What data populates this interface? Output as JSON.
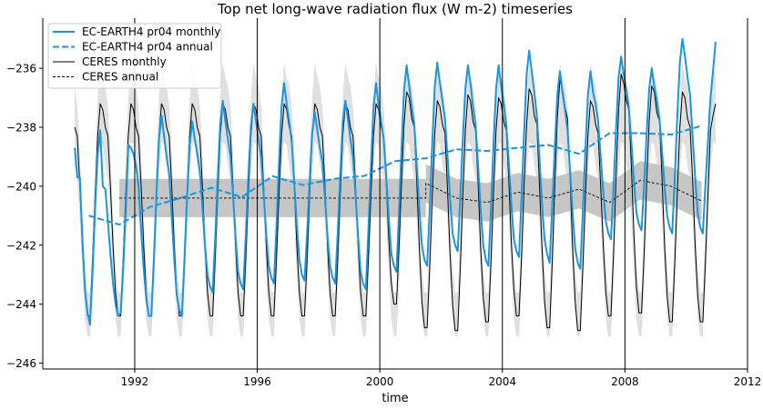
{
  "chart_data": {
    "type": "line",
    "title": "Top net long-wave radiation flux (W m-2) timeseries",
    "xlabel": "time",
    "ylabel": "",
    "xlim": [
      1989.0,
      2012.0
    ],
    "ylim": [
      -246.2,
      -234.3
    ],
    "x_ticks": [
      1992,
      1996,
      2000,
      2004,
      2008,
      2012
    ],
    "x_tick_labels": [
      "1992",
      "1996",
      "2000",
      "2004",
      "2008",
      "2012"
    ],
    "y_ticks": [
      -236,
      -238,
      -240,
      -242,
      -244,
      -246
    ],
    "y_tick_labels": [
      "−236",
      "−238",
      "−240",
      "−242",
      "−244",
      "−246"
    ],
    "vertical_gridlines": true,
    "legend_position": "upper-left",
    "colors": {
      "model": "#1a96e0",
      "obs": "#000000",
      "obs_monthly_range": "#e0e0e0",
      "obs_annual_range": "#c6c6c6"
    },
    "monthly_years": [
      1990,
      1991,
      1992,
      1993,
      1994,
      1995,
      1996,
      1997,
      1998,
      1999,
      2000,
      2001,
      2002,
      2003,
      2004,
      2005,
      2006,
      2007,
      2008,
      2009,
      2010
    ],
    "series": [
      {
        "name": "EC-EARTH4 pr04 monthly",
        "style": "solid",
        "color": "#1a96e0",
        "monthly_values": [
          [
            -238.7,
            -239.7,
            -239.7,
            -241.8,
            -243.5,
            -244.3,
            -244.7,
            -242.9,
            -240.7,
            -238.9,
            -238.1,
            -240.0
          ],
          [
            -240.1,
            -241.2,
            -242.3,
            -243.3,
            -244.0,
            -244.4,
            -244.3,
            -242.8,
            -240.9,
            -238.6,
            -238.7,
            -238.9
          ],
          [
            -239.3,
            -240.0,
            -241.5,
            -242.8,
            -243.8,
            -244.4,
            -244.4,
            -242.5,
            -240.3,
            -238.4,
            -237.6,
            -238.3
          ],
          [
            -239.0,
            -239.6,
            -241.0,
            -242.5,
            -243.7,
            -244.2,
            -244.4,
            -242.5,
            -240.4,
            -238.6,
            -237.8,
            -238.4
          ],
          [
            -238.9,
            -239.5,
            -240.7,
            -242.0,
            -243.0,
            -243.4,
            -243.6,
            -241.8,
            -239.7,
            -237.9,
            -237.1,
            -237.8
          ],
          [
            -238.4,
            -239.0,
            -240.3,
            -241.7,
            -242.9,
            -243.3,
            -243.5,
            -241.7,
            -239.7,
            -238.0,
            -237.2,
            -237.8
          ],
          [
            -238.4,
            -239.0,
            -240.3,
            -241.6,
            -242.7,
            -243.1,
            -243.3,
            -241.4,
            -239.2,
            -237.3,
            -236.5,
            -237.2
          ],
          [
            -237.8,
            -238.5,
            -239.9,
            -241.3,
            -242.5,
            -243.0,
            -243.2,
            -241.6,
            -239.8,
            -238.2,
            -237.5,
            -238.1
          ],
          [
            -238.7,
            -239.2,
            -240.4,
            -241.7,
            -242.7,
            -243.1,
            -243.3,
            -241.6,
            -239.6,
            -237.8,
            -237.1,
            -237.7
          ],
          [
            -238.4,
            -239.0,
            -240.3,
            -241.7,
            -242.9,
            -243.3,
            -243.5,
            -241.5,
            -239.3,
            -237.3,
            -236.5,
            -237.2
          ],
          [
            -237.8,
            -238.4,
            -239.7,
            -241.1,
            -242.3,
            -242.7,
            -242.9,
            -240.9,
            -238.7,
            -236.7,
            -235.9,
            -236.6
          ],
          [
            -237.3,
            -237.9,
            -239.3,
            -240.8,
            -242.0,
            -242.5,
            -242.7,
            -240.8,
            -238.6,
            -236.6,
            -235.8,
            -236.5
          ],
          [
            -237.1,
            -237.7,
            -239.0,
            -240.4,
            -241.6,
            -242.0,
            -242.2,
            -240.4,
            -238.4,
            -236.7,
            -235.9,
            -236.5
          ],
          [
            -237.3,
            -237.9,
            -239.3,
            -240.8,
            -242.0,
            -242.5,
            -242.7,
            -240.8,
            -238.6,
            -236.7,
            -235.9,
            -236.6
          ],
          [
            -237.2,
            -237.9,
            -239.2,
            -240.6,
            -241.8,
            -242.2,
            -242.4,
            -240.4,
            -238.2,
            -236.2,
            -235.4,
            -236.1
          ],
          [
            -236.8,
            -237.6,
            -239.0,
            -240.6,
            -241.8,
            -242.3,
            -242.6,
            -240.7,
            -238.7,
            -236.9,
            -236.1,
            -236.8
          ],
          [
            -237.4,
            -238.1,
            -239.5,
            -240.9,
            -242.1,
            -242.6,
            -242.8,
            -240.9,
            -238.8,
            -236.9,
            -236.1,
            -236.8
          ],
          [
            -237.2,
            -237.8,
            -239.0,
            -240.2,
            -241.2,
            -241.6,
            -241.8,
            -240.1,
            -238.1,
            -236.3,
            -235.6,
            -236.2
          ],
          [
            -236.7,
            -237.3,
            -238.5,
            -239.8,
            -240.9,
            -241.3,
            -241.5,
            -240.0,
            -238.2,
            -236.7,
            -236.0,
            -236.6
          ],
          [
            -237.1,
            -237.7,
            -238.8,
            -240.0,
            -241.0,
            -241.4,
            -241.6,
            -239.7,
            -237.6,
            -235.8,
            -235.0,
            -235.6
          ],
          [
            -236.3,
            -236.9,
            -238.3,
            -239.7,
            -240.9,
            -241.4,
            -241.6,
            -240.0,
            -238.5,
            -237.0,
            -236.1,
            -235.1
          ]
        ]
      },
      {
        "name": "EC-EARTH4 pr04 annual",
        "style": "dashed",
        "color": "#1a96e0",
        "x": [
          1990.5,
          1991.5,
          1992.5,
          1993.5,
          1994.5,
          1995.5,
          1996.5,
          1997.5,
          1998.5,
          1999.5,
          2000.5,
          2001.5,
          2002.5,
          2003.5,
          2004.5,
          2005.5,
          2006.5,
          2007.5,
          2008.5,
          2009.5,
          2010.5
        ],
        "y": [
          -241.0,
          -241.3,
          -240.7,
          -240.4,
          -240.05,
          -240.37,
          -239.66,
          -239.96,
          -239.75,
          -239.65,
          -239.15,
          -239.05,
          -238.75,
          -238.8,
          -238.7,
          -238.6,
          -238.9,
          -238.2,
          -238.2,
          -238.25,
          -237.95
        ]
      },
      {
        "name": "CERES monthly",
        "style": "solid",
        "color": "#000000",
        "monthly_values": [
          [
            -238.0,
            -238.3,
            -240.0,
            -242.0,
            -243.6,
            -244.4,
            -244.4,
            -242.5,
            -240.3,
            -238.3,
            -237.2,
            -237.4
          ],
          [
            -238.0,
            -238.3,
            -240.0,
            -242.0,
            -243.6,
            -244.4,
            -244.4,
            -242.5,
            -240.3,
            -238.3,
            -237.2,
            -237.4
          ],
          [
            -238.0,
            -238.3,
            -240.0,
            -242.0,
            -243.6,
            -244.4,
            -244.4,
            -242.5,
            -240.3,
            -238.3,
            -237.2,
            -237.4
          ],
          [
            -238.0,
            -238.3,
            -240.0,
            -242.0,
            -243.6,
            -244.4,
            -244.4,
            -242.5,
            -240.3,
            -238.3,
            -237.2,
            -237.4
          ],
          [
            -238.0,
            -238.3,
            -240.0,
            -242.0,
            -243.6,
            -244.4,
            -244.4,
            -242.5,
            -240.3,
            -238.3,
            -237.2,
            -237.4
          ],
          [
            -238.0,
            -238.3,
            -240.0,
            -242.0,
            -243.6,
            -244.4,
            -244.4,
            -242.5,
            -240.3,
            -238.3,
            -237.2,
            -237.4
          ],
          [
            -238.0,
            -238.3,
            -240.0,
            -242.0,
            -243.6,
            -244.4,
            -244.4,
            -242.5,
            -240.3,
            -238.3,
            -237.2,
            -237.4
          ],
          [
            -238.0,
            -238.3,
            -240.0,
            -242.0,
            -243.6,
            -244.4,
            -244.4,
            -242.5,
            -240.3,
            -238.3,
            -237.2,
            -237.4
          ],
          [
            -238.0,
            -238.3,
            -240.0,
            -242.0,
            -243.6,
            -244.4,
            -244.4,
            -242.5,
            -240.3,
            -238.3,
            -237.2,
            -237.4
          ],
          [
            -238.0,
            -238.3,
            -240.0,
            -242.0,
            -243.6,
            -244.4,
            -244.4,
            -242.5,
            -240.3,
            -238.3,
            -237.2,
            -237.4
          ],
          [
            -238.0,
            -238.3,
            -239.9,
            -241.8,
            -243.3,
            -244.0,
            -244.0,
            -242.1,
            -239.9,
            -237.9,
            -236.8,
            -237.0
          ],
          [
            -237.7,
            -238.0,
            -239.9,
            -242.1,
            -243.9,
            -244.8,
            -244.8,
            -242.8,
            -240.4,
            -238.2,
            -237.1,
            -237.3
          ],
          [
            -237.9,
            -238.2,
            -240.1,
            -242.3,
            -244.0,
            -244.9,
            -244.9,
            -242.8,
            -240.3,
            -238.1,
            -236.9,
            -237.1
          ],
          [
            -237.8,
            -238.1,
            -239.9,
            -242.1,
            -243.8,
            -244.6,
            -244.6,
            -242.6,
            -240.2,
            -238.1,
            -237.0,
            -237.2
          ],
          [
            -237.8,
            -238.1,
            -239.8,
            -241.9,
            -243.5,
            -244.4,
            -244.4,
            -242.4,
            -240.0,
            -237.9,
            -236.7,
            -236.9
          ],
          [
            -237.6,
            -237.9,
            -239.9,
            -242.1,
            -243.9,
            -244.8,
            -244.8,
            -242.6,
            -240.0,
            -237.7,
            -236.4,
            -236.7
          ],
          [
            -237.3,
            -237.7,
            -239.7,
            -242.1,
            -243.9,
            -244.9,
            -244.9,
            -242.8,
            -240.4,
            -238.3,
            -237.1,
            -237.3
          ],
          [
            -237.9,
            -238.2,
            -240.0,
            -242.0,
            -243.6,
            -244.4,
            -244.4,
            -242.3,
            -239.7,
            -237.4,
            -236.2,
            -236.5
          ],
          [
            -237.1,
            -237.4,
            -239.3,
            -241.6,
            -243.4,
            -244.3,
            -244.3,
            -242.3,
            -239.9,
            -237.8,
            -236.6,
            -236.8
          ],
          [
            -237.5,
            -237.8,
            -239.7,
            -242.0,
            -243.7,
            -244.6,
            -244.6,
            -242.6,
            -240.2,
            -238.0,
            -236.8,
            -237.0
          ],
          [
            -237.7,
            -238.0,
            -239.8,
            -242.0,
            -243.7,
            -244.6,
            -244.6,
            -242.6,
            -240.3,
            -238.1,
            -237.6,
            -237.2
          ]
        ],
        "range_by_calendar_month": {
          "lower": [
            -239.3,
            -239.8,
            -241.2,
            -243.0,
            -244.5,
            -245.1,
            -245.1,
            -243.5,
            -241.5,
            -239.5,
            -238.5,
            -238.6
          ],
          "upper": [
            -236.6,
            -237.3,
            -238.8,
            -241.0,
            -242.8,
            -243.6,
            -243.6,
            -241.5,
            -239.0,
            -237.0,
            -235.8,
            -236.3
          ]
        }
      },
      {
        "name": "CERES annual",
        "style": "dashed",
        "color": "#000000",
        "x": [
          1991.5,
          1992.5,
          1993.5,
          1994.5,
          1995.5,
          1996.5,
          1997.5,
          1998.5,
          1999.5,
          2000.5,
          2001.5,
          2001.5,
          2002.5,
          2003.5,
          2004.5,
          2005.5,
          2006.5,
          2007.5,
          2008.5,
          2009.5,
          2010.5
        ],
        "y": [
          -240.4,
          -240.4,
          -240.4,
          -240.4,
          -240.4,
          -240.4,
          -240.4,
          -240.4,
          -240.4,
          -240.4,
          -240.4,
          -239.9,
          -240.4,
          -240.55,
          -240.2,
          -240.4,
          -240.1,
          -240.55,
          -239.8,
          -240.0,
          -240.5
        ],
        "range_half_width": 0.65
      }
    ]
  }
}
